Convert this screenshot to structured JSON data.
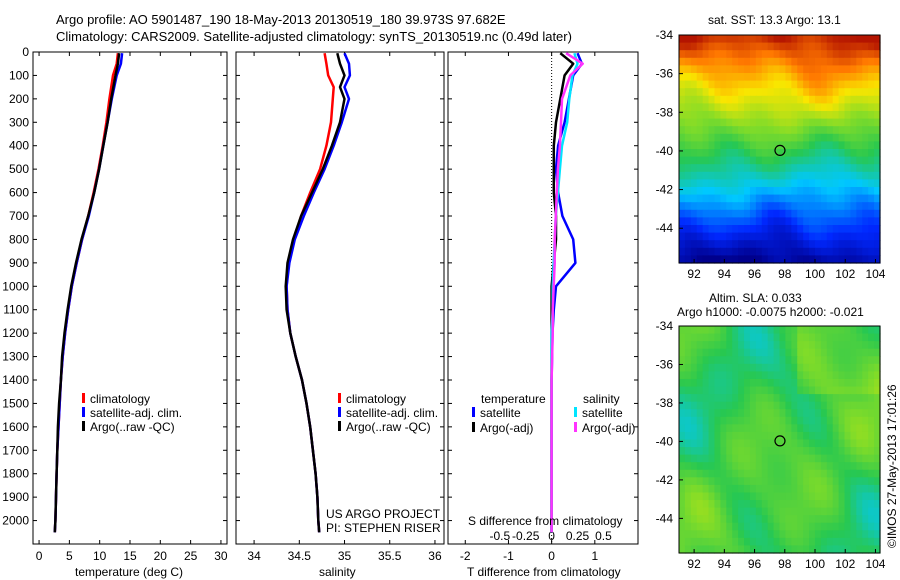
{
  "header": {
    "line1": "Argo profile: AO 5901487_190 18-May-2013 20130519_180 39.973S 97.682E",
    "line2": "Climatology: CARS2009. Satellite-adjusted climatology: synTS_20130519.nc (0.49d later)"
  },
  "colors": {
    "climatology": "#ff0000",
    "satellite": "#0000ff",
    "argo": "#000000",
    "sal_satellite": "#00e5ff",
    "sal_argo": "#ff33ff"
  },
  "chart_data": [
    {
      "type": "line",
      "name": "temperature-profile",
      "xlabel": "temperature (deg C)",
      "ylabel": "",
      "xlim": [
        -1,
        31
      ],
      "ylim": [
        2100,
        0
      ],
      "xticks": [
        0,
        5,
        10,
        15,
        20,
        25,
        30
      ],
      "yticks": [
        0,
        100,
        200,
        300,
        400,
        500,
        600,
        700,
        800,
        900,
        1000,
        1100,
        1200,
        1300,
        1400,
        1500,
        1600,
        1700,
        1800,
        1900,
        2000
      ],
      "legend": [
        "climatology",
        "satellite-adj. clim.",
        "Argo(..raw -QC)"
      ],
      "series": [
        {
          "name": "climatology",
          "color": "#ff0000",
          "depth": [
            5,
            50,
            100,
            200,
            300,
            400,
            500,
            600,
            700,
            800,
            900,
            1000,
            1100,
            1200,
            1300,
            1400,
            1500,
            1600,
            1700,
            1800,
            1900,
            2000,
            2050
          ],
          "values": [
            13.0,
            12.8,
            12.2,
            11.6,
            11.1,
            10.5,
            9.8,
            9.0,
            8.1,
            7.1,
            6.2,
            5.4,
            4.8,
            4.3,
            3.9,
            3.6,
            3.4,
            3.2,
            3.0,
            2.9,
            2.8,
            2.7,
            2.6
          ]
        },
        {
          "name": "satellite",
          "color": "#0000ff",
          "depth": [
            5,
            50,
            100,
            200,
            300,
            400,
            500,
            600,
            700,
            800,
            900,
            1000,
            1100,
            1200,
            1300,
            1400,
            1500,
            1600,
            1700,
            1800,
            1900,
            2000,
            2050
          ],
          "values": [
            13.7,
            13.5,
            12.8,
            12.0,
            11.3,
            10.6,
            9.9,
            9.1,
            8.2,
            7.1,
            6.2,
            5.4,
            4.8,
            4.3,
            3.9,
            3.6,
            3.4,
            3.2,
            3.0,
            2.9,
            2.8,
            2.7,
            2.6
          ]
        },
        {
          "name": "argo",
          "color": "#000000",
          "depth": [
            5,
            50,
            100,
            200,
            300,
            400,
            500,
            600,
            700,
            800,
            900,
            1000,
            1100,
            1200,
            1300,
            1400,
            1500,
            1600,
            1700,
            1800,
            1900,
            2000,
            2050
          ],
          "values": [
            13.2,
            13.0,
            12.6,
            11.9,
            11.3,
            10.6,
            9.9,
            9.1,
            8.1,
            7.0,
            6.1,
            5.3,
            4.7,
            4.2,
            3.8,
            3.6,
            3.3,
            3.1,
            3.0,
            2.9,
            2.8,
            2.7,
            2.6
          ]
        }
      ]
    },
    {
      "type": "line",
      "name": "salinity-profile",
      "xlabel": "salinity",
      "xlim": [
        33.8,
        36.1
      ],
      "ylim": [
        2100,
        0
      ],
      "xticks": [
        34,
        34.5,
        35,
        35.5,
        36
      ],
      "legend": [
        "climatology",
        "satellite-adj. clim.",
        "Argo(..raw -QC)"
      ],
      "annotations": [
        "US ARGO PROJECT",
        "PI: STEPHEN RISER"
      ],
      "series": [
        {
          "name": "climatology",
          "color": "#ff0000",
          "depth": [
            5,
            50,
            100,
            150,
            200,
            300,
            400,
            500,
            600,
            700,
            800,
            900,
            1000,
            1100,
            1200,
            1300,
            1400,
            1500,
            1600,
            1700,
            1800,
            1900,
            2000,
            2050
          ],
          "values": [
            34.78,
            34.8,
            34.82,
            34.88,
            34.87,
            34.85,
            34.8,
            34.73,
            34.62,
            34.52,
            34.44,
            34.38,
            34.36,
            34.37,
            34.4,
            34.46,
            34.53,
            34.58,
            34.62,
            34.65,
            34.68,
            34.7,
            34.71,
            34.72
          ]
        },
        {
          "name": "satellite",
          "color": "#0000ff",
          "depth": [
            5,
            50,
            100,
            150,
            200,
            300,
            400,
            500,
            600,
            700,
            800,
            900,
            1000,
            1100,
            1200,
            1300,
            1400,
            1500,
            1600,
            1700,
            1800,
            1900,
            2000,
            2050
          ],
          "values": [
            35.0,
            35.05,
            35.06,
            35.0,
            35.05,
            34.97,
            34.88,
            34.78,
            34.66,
            34.55,
            34.45,
            34.39,
            34.36,
            34.37,
            34.4,
            34.46,
            34.53,
            34.58,
            34.62,
            34.65,
            34.68,
            34.7,
            34.71,
            34.72
          ]
        },
        {
          "name": "argo",
          "color": "#000000",
          "depth": [
            5,
            50,
            100,
            150,
            200,
            300,
            400,
            500,
            600,
            700,
            800,
            900,
            1000,
            1100,
            1200,
            1300,
            1400,
            1500,
            1600,
            1700,
            1800,
            1900,
            2000,
            2050
          ],
          "values": [
            34.92,
            34.95,
            35.0,
            34.95,
            35.0,
            34.95,
            34.86,
            34.76,
            34.64,
            34.52,
            34.43,
            34.37,
            34.35,
            34.36,
            34.4,
            34.46,
            34.53,
            34.58,
            34.62,
            34.65,
            34.68,
            34.7,
            34.71,
            34.72
          ]
        }
      ]
    },
    {
      "type": "line",
      "name": "difference-profile",
      "xlabel": "T difference from climatology",
      "xlabel_top": "S difference from climatology",
      "xlim": [
        -2.4,
        2.0
      ],
      "ylim": [
        2100,
        0
      ],
      "xticks": [
        -2,
        -1,
        0,
        1
      ],
      "xtick_labels": [
        "-2",
        "-1",
        "0",
        "1"
      ],
      "sticks": [
        -0.5,
        -0.25,
        0,
        0.25,
        0.5
      ],
      "stick_labels": [
        "-0.5",
        "-0.25",
        "0",
        "0.25",
        "0.5"
      ],
      "legend_titles": [
        "temperature",
        "salinity"
      ],
      "legend": [
        "satellite",
        "Argo(-adj)",
        "satellite",
        "Argo(-adj)"
      ],
      "series": [
        {
          "name": "T satellite",
          "color": "#0000ff",
          "depth": [
            5,
            50,
            100,
            200,
            300,
            400,
            500,
            600,
            700,
            800,
            900,
            1000,
            1100,
            1200,
            1400,
            1600,
            1800,
            2050
          ],
          "values": [
            0.6,
            0.7,
            0.5,
            0.4,
            0.3,
            0.15,
            0.1,
            0.15,
            0.25,
            0.5,
            0.55,
            0.1,
            0.05,
            0.02,
            0.0,
            0.0,
            0.0,
            0.0
          ]
        },
        {
          "name": "T Argo",
          "color": "#000000",
          "depth": [
            5,
            50,
            100,
            200,
            300,
            400,
            500,
            600,
            700,
            800,
            900,
            1000,
            1100,
            1200,
            1400,
            1600,
            1800,
            2050
          ],
          "values": [
            0.2,
            0.5,
            0.3,
            0.2,
            0.1,
            0.05,
            0.05,
            0.05,
            0.1,
            0.1,
            0.05,
            0.0,
            0.0,
            0.0,
            0.0,
            0.0,
            0.0,
            0.0
          ]
        },
        {
          "name": "S satellite",
          "color": "#00e5ff",
          "depth": [
            5,
            50,
            100,
            200,
            300,
            400,
            500,
            600,
            700,
            800,
            900,
            1000,
            1100,
            1200,
            1400,
            1600,
            1800,
            2050
          ],
          "values": [
            0.22,
            0.25,
            0.2,
            0.17,
            0.15,
            0.1,
            0.08,
            0.06,
            0.04,
            0.03,
            0.02,
            0.01,
            0.01,
            0.0,
            0.0,
            0.0,
            0.0,
            0.0
          ]
        },
        {
          "name": "S Argo",
          "color": "#ff33ff",
          "depth": [
            5,
            50,
            100,
            200,
            300,
            400,
            500,
            600,
            700,
            800,
            900,
            1000,
            1100,
            1200,
            1400,
            1600,
            1800,
            2050
          ],
          "values": [
            0.14,
            0.3,
            0.18,
            0.1,
            0.09,
            0.08,
            0.06,
            0.05,
            0.04,
            0.03,
            0.03,
            0.02,
            0.01,
            0.01,
            0.0,
            0.0,
            0.0,
            0.0
          ]
        }
      ]
    },
    {
      "type": "heatmap",
      "name": "sst-map",
      "title": "sat. SST: 13.3 Argo: 13.1",
      "xlim": [
        91,
        104.3
      ],
      "ylim": [
        -45.8,
        -34
      ],
      "xticks": [
        92,
        94,
        96,
        98,
        100,
        102,
        104
      ],
      "yticks": [
        -34,
        -36,
        -38,
        -40,
        -42,
        -44
      ],
      "marker": {
        "lon": 97.682,
        "lat": -39.973
      }
    },
    {
      "type": "heatmap",
      "name": "sla-map",
      "title": "Altim. SLA: 0.033",
      "subtitle": "Argo h1000: -0.0075 h2000: -0.021",
      "xlim": [
        91,
        104.3
      ],
      "ylim": [
        -45.8,
        -34
      ],
      "xticks": [
        92,
        94,
        96,
        98,
        100,
        102,
        104
      ],
      "yticks": [
        -34,
        -36,
        -38,
        -40,
        -42,
        -44
      ],
      "marker": {
        "lon": 97.682,
        "lat": -39.973
      }
    }
  ],
  "footer": {
    "stamp": "©IMOS 27-May-2013 17:01:26"
  }
}
